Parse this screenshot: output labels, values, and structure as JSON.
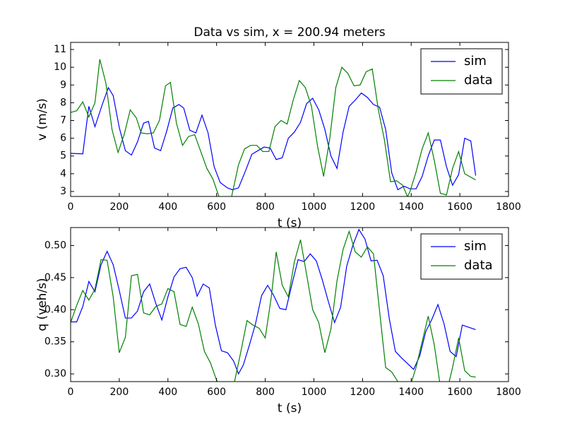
{
  "chart_data": [
    {
      "type": "line",
      "title": "Data vs sim, x = 200.94 meters",
      "xlabel": "t (s)",
      "ylabel": "v (m/s)",
      "xlim": [
        0,
        1800
      ],
      "ylim": [
        2.72,
        11.4
      ],
      "xticks": [
        0,
        200,
        400,
        600,
        800,
        1000,
        1200,
        1400,
        1600,
        1800
      ],
      "yticks": [
        3,
        4,
        5,
        6,
        7,
        8,
        9,
        10,
        11
      ],
      "legend": "upper right",
      "series": [
        {
          "name": "sim",
          "color": "#0000ff",
          "x": [
            0,
            50,
            75,
            100,
            130,
            155,
            175,
            200,
            225,
            250,
            275,
            300,
            320,
            345,
            370,
            395,
            420,
            445,
            465,
            490,
            515,
            540,
            565,
            590,
            615,
            645,
            665,
            690,
            720,
            745,
            770,
            795,
            820,
            845,
            870,
            895,
            920,
            945,
            970,
            995,
            1020,
            1045,
            1070,
            1095,
            1120,
            1145,
            1170,
            1195,
            1220,
            1245,
            1270,
            1295,
            1320,
            1345,
            1370,
            1395,
            1420,
            1445,
            1470,
            1495,
            1520,
            1545,
            1570,
            1595,
            1620,
            1645,
            1665
          ],
          "values": [
            5.15,
            5.12,
            7.8,
            6.65,
            7.9,
            8.85,
            8.4,
            6.6,
            5.3,
            5.05,
            5.8,
            6.85,
            6.95,
            5.45,
            5.3,
            6.4,
            7.7,
            7.9,
            7.7,
            6.45,
            6.3,
            7.3,
            6.3,
            4.4,
            3.5,
            3.2,
            3.1,
            3.2,
            4.2,
            5.1,
            5.3,
            5.5,
            5.45,
            4.8,
            4.9,
            6.0,
            6.35,
            6.9,
            7.95,
            8.25,
            7.6,
            6.5,
            5.0,
            4.3,
            6.35,
            7.8,
            8.15,
            8.55,
            8.3,
            7.9,
            7.75,
            6.5,
            4.05,
            3.1,
            3.3,
            3.15,
            3.15,
            3.85,
            5.0,
            5.9,
            5.9,
            4.4,
            3.35,
            3.95,
            6.0,
            5.85,
            3.9
          ]
        },
        {
          "name": "data",
          "color": "#008000",
          "x": [
            0,
            25,
            50,
            75,
            100,
            120,
            145,
            170,
            195,
            220,
            245,
            270,
            290,
            315,
            340,
            365,
            390,
            410,
            435,
            460,
            485,
            510,
            535,
            560,
            585,
            610,
            630,
            660,
            690,
            715,
            740,
            765,
            790,
            815,
            840,
            865,
            890,
            915,
            940,
            965,
            990,
            1015,
            1040,
            1065,
            1090,
            1115,
            1140,
            1165,
            1190,
            1215,
            1240,
            1265,
            1290,
            1315,
            1340,
            1365,
            1385,
            1395,
            1420,
            1445,
            1470,
            1495,
            1520,
            1545,
            1570,
            1595,
            1620,
            1665
          ],
          "values": [
            7.45,
            7.55,
            8.05,
            7.2,
            8.0,
            10.45,
            9.1,
            6.5,
            5.2,
            6.2,
            7.6,
            7.15,
            6.3,
            6.25,
            6.3,
            7.0,
            8.95,
            9.15,
            6.85,
            5.6,
            6.1,
            6.2,
            5.25,
            4.3,
            3.7,
            2.7,
            2.5,
            2.6,
            4.5,
            5.4,
            5.6,
            5.6,
            5.25,
            5.25,
            6.65,
            7.0,
            6.8,
            8.15,
            9.25,
            8.85,
            7.8,
            5.55,
            3.85,
            5.95,
            8.85,
            10.0,
            9.65,
            8.95,
            9.0,
            9.75,
            9.9,
            7.6,
            5.9,
            3.55,
            3.6,
            3.35,
            2.7,
            3.0,
            4.1,
            5.4,
            6.3,
            4.75,
            2.9,
            2.8,
            4.3,
            5.25,
            4.0,
            3.65
          ]
        }
      ]
    },
    {
      "type": "line",
      "xlabel": "t (s)",
      "ylabel": "q (veh/s)",
      "xlim": [
        0,
        1800
      ],
      "ylim": [
        0.288,
        0.528
      ],
      "xticks": [
        0,
        200,
        400,
        600,
        800,
        1000,
        1200,
        1400,
        1600,
        1800
      ],
      "yticks": [
        {
          "value": 0.3,
          "label": "0.30"
        },
        0.35,
        {
          "value": 0.4,
          "label": "0.40"
        },
        0.45,
        {
          "value": 0.5,
          "label": "0.50"
        }
      ],
      "legend": "upper right",
      "series": [
        {
          "name": "sim",
          "color": "#0000ff",
          "x": [
            0,
            25,
            50,
            75,
            100,
            125,
            150,
            175,
            200,
            225,
            250,
            275,
            300,
            325,
            350,
            375,
            400,
            425,
            450,
            475,
            500,
            520,
            545,
            570,
            595,
            620,
            645,
            670,
            690,
            710,
            735,
            760,
            785,
            810,
            835,
            860,
            885,
            910,
            935,
            960,
            985,
            1010,
            1035,
            1060,
            1085,
            1110,
            1135,
            1160,
            1185,
            1210,
            1235,
            1260,
            1285,
            1310,
            1335,
            1360,
            1385,
            1410,
            1435,
            1460,
            1485,
            1510,
            1535,
            1560,
            1585,
            1610,
            1665
          ],
          "values": [
            0.381,
            0.381,
            0.405,
            0.444,
            0.428,
            0.47,
            0.491,
            0.47,
            0.43,
            0.387,
            0.387,
            0.398,
            0.428,
            0.44,
            0.41,
            0.384,
            0.42,
            0.451,
            0.464,
            0.466,
            0.45,
            0.421,
            0.44,
            0.434,
            0.376,
            0.336,
            0.333,
            0.32,
            0.3,
            0.314,
            0.345,
            0.378,
            0.422,
            0.438,
            0.422,
            0.402,
            0.4,
            0.44,
            0.478,
            0.475,
            0.487,
            0.476,
            0.446,
            0.412,
            0.38,
            0.404,
            0.468,
            0.5,
            0.525,
            0.51,
            0.476,
            0.477,
            0.453,
            0.386,
            0.335,
            0.325,
            0.316,
            0.307,
            0.328,
            0.366,
            0.385,
            0.408,
            0.378,
            0.335,
            0.327,
            0.376,
            0.369
          ]
        },
        {
          "name": "data",
          "color": "#008000",
          "x": [
            0,
            25,
            50,
            75,
            100,
            125,
            150,
            175,
            200,
            225,
            250,
            275,
            300,
            325,
            350,
            375,
            400,
            425,
            450,
            475,
            500,
            525,
            550,
            575,
            600,
            625,
            650,
            675,
            700,
            725,
            750,
            775,
            800,
            825,
            845,
            870,
            895,
            920,
            945,
            970,
            995,
            1020,
            1045,
            1070,
            1095,
            1120,
            1145,
            1170,
            1195,
            1220,
            1245,
            1270,
            1295,
            1320,
            1345,
            1370,
            1395,
            1420,
            1445,
            1470,
            1495,
            1520,
            1545,
            1570,
            1595,
            1620,
            1645,
            1665
          ],
          "values": [
            0.38,
            0.407,
            0.43,
            0.415,
            0.432,
            0.478,
            0.477,
            0.42,
            0.333,
            0.357,
            0.453,
            0.455,
            0.395,
            0.392,
            0.405,
            0.409,
            0.433,
            0.428,
            0.377,
            0.374,
            0.404,
            0.378,
            0.335,
            0.317,
            0.29,
            0.27,
            0.26,
            0.29,
            0.335,
            0.383,
            0.376,
            0.371,
            0.356,
            0.42,
            0.49,
            0.438,
            0.42,
            0.475,
            0.509,
            0.455,
            0.4,
            0.38,
            0.333,
            0.37,
            0.445,
            0.494,
            0.522,
            0.49,
            0.482,
            0.498,
            0.487,
            0.398,
            0.31,
            0.303,
            0.288,
            0.27,
            0.28,
            0.31,
            0.35,
            0.39,
            0.345,
            0.28,
            0.27,
            0.31,
            0.356,
            0.305,
            0.296,
            0.295
          ]
        }
      ]
    }
  ]
}
